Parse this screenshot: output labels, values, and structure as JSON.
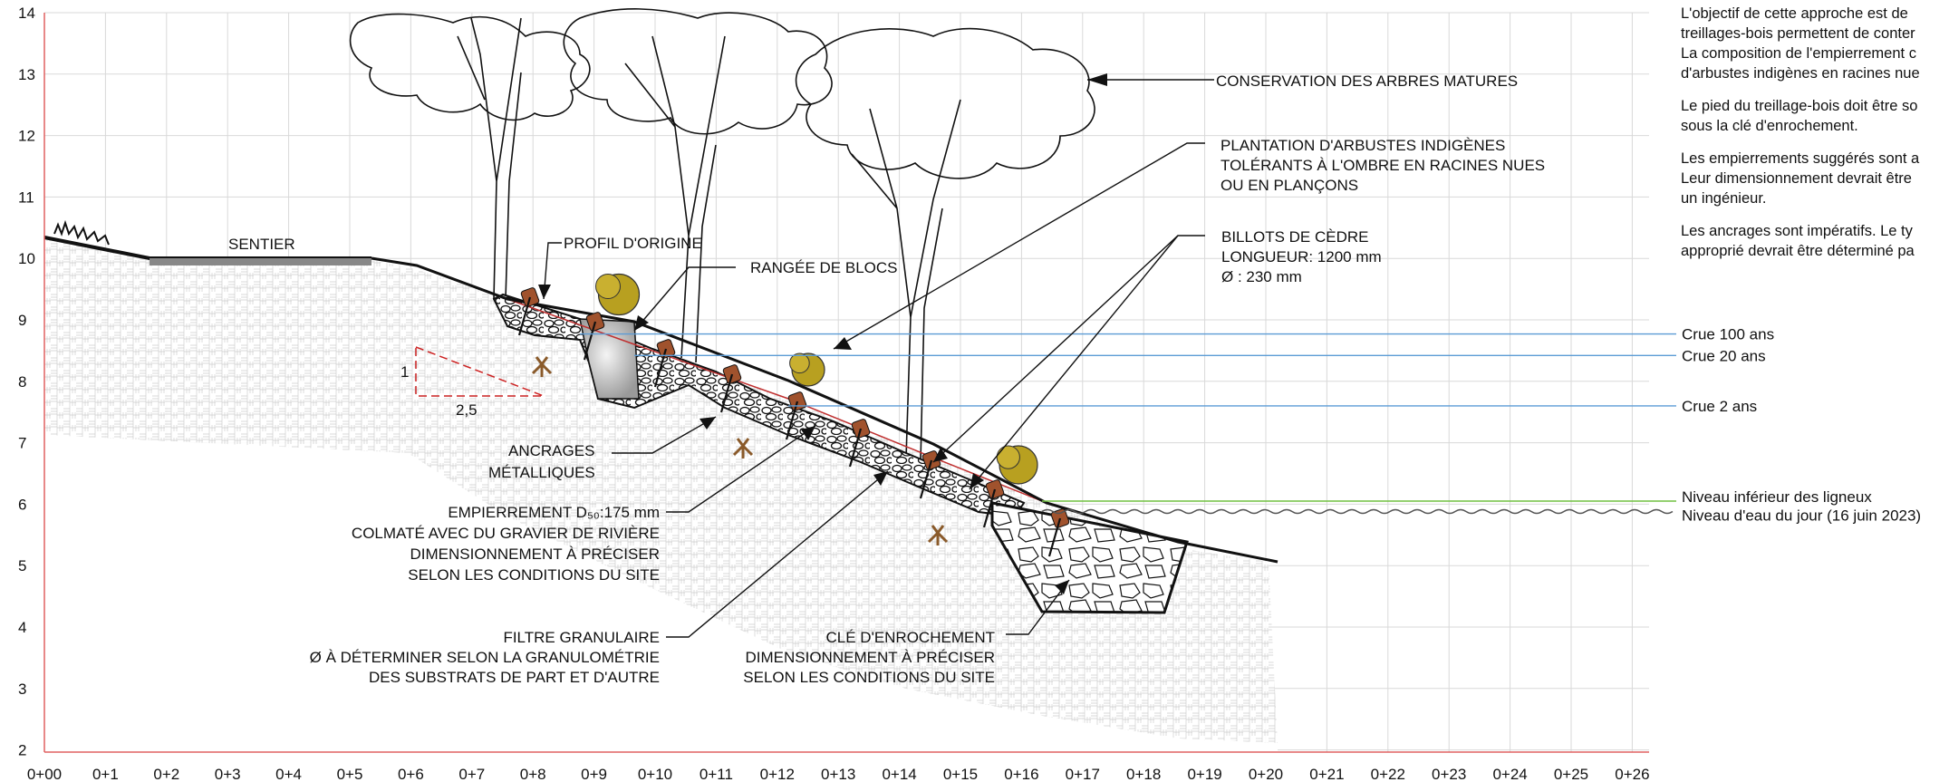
{
  "axes": {
    "y_ticks": [
      "2",
      "3",
      "4",
      "5",
      "6",
      "7",
      "8",
      "9",
      "10",
      "11",
      "12",
      "13",
      "14"
    ],
    "x_ticks": [
      "0+00",
      "0+1",
      "0+2",
      "0+3",
      "0+4",
      "0+5",
      "0+6",
      "0+7",
      "0+8",
      "0+9",
      "0+10",
      "0+11",
      "0+12",
      "0+13",
      "0+14",
      "0+15",
      "0+16",
      "0+17",
      "0+18",
      "0+19",
      "0+20",
      "0+21",
      "0+22",
      "0+23",
      "0+24",
      "0+25",
      "0+26"
    ]
  },
  "labels": {
    "sentier": "SENTIER",
    "profil_origine": "PROFIL D'ORIGINE",
    "rangee_blocs": "RANGÉE DE BLOCS",
    "conservation": "CONSERVATION DES ARBRES MATURES",
    "plantation": [
      "PLANTATION D'ARBUSTES INDIGÈNES",
      "TOLÉRANTS À L'OMBRE EN RACINES NUES",
      "OU EN PLANÇONS"
    ],
    "billots": [
      "BILLOTS DE CÈDRE",
      "LONGUEUR: 1200 mm",
      "Ø : 230 mm"
    ],
    "ancrages": [
      "ANCRAGES",
      "MÉTALLIQUES"
    ],
    "empierrement": [
      "EMPIERREMENT D₅₀:175 mm",
      "COLMATÉ AVEC DU GRAVIER DE RIVIÈRE",
      "DIMENSIONNEMENT À PRÉCISER",
      "SELON LES CONDITIONS DU SITE"
    ],
    "filtre": [
      "FILTRE GRANULAIRE",
      "Ø À DÉTERMINER SELON LA GRANULOMÉTRIE",
      "DES SUBSTRATS DE PART ET D'AUTRE"
    ],
    "cle": [
      "CLÉ D'ENROCHEMENT",
      "DIMENSIONNEMENT À PRÉCISER",
      "SELON LES CONDITIONS DU SITE"
    ],
    "slope_v": "1",
    "slope_h": "2,5"
  },
  "water_levels": [
    {
      "label": "Crue 100 ans",
      "elevation": 8.77,
      "color": "#5b9bd5"
    },
    {
      "label": "Crue 20 ans",
      "elevation": 8.42,
      "color": "#5b9bd5"
    },
    {
      "label": "Crue 2 ans",
      "elevation": 7.6,
      "color": "#5b9bd5"
    },
    {
      "label": "Niveau inférieur des ligneux",
      "elevation": 6.05,
      "color": "#70c040"
    },
    {
      "label": "Niveau d'eau du jour (16 juin 2023)",
      "elevation": 5.88,
      "color": "#555555"
    }
  ],
  "notes": [
    [
      "L'objectif de cette approche est de",
      "treillages-bois permettent de conter",
      "La composition de l'empierrement c",
      "d'arbustes indigènes en racines nue"
    ],
    [
      "Le pied du treillage-bois doit être so",
      "sous la clé d'enrochement."
    ],
    [
      "Les empierrements suggérés sont a",
      "Leur dimensionnement devrait être",
      "un ingénieur."
    ],
    [
      "Les ancrages sont impératifs. Le ty",
      "approprié devrait être déterminé pa"
    ]
  ],
  "colors": {
    "grid": "#d9d9d9",
    "axis": "#e06060",
    "water": "#5b9bd5",
    "woody": "#70c040",
    "log": "#a0522d",
    "shrub": "#b8a020",
    "slope_guide": "#cc2222"
  }
}
